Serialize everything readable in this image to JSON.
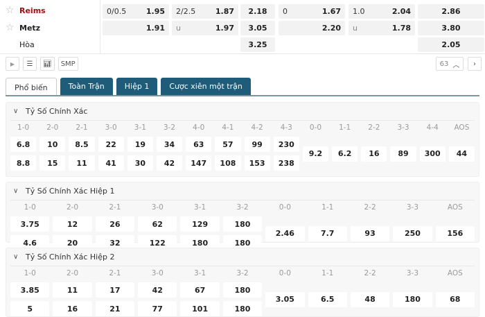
{
  "match": {
    "home": {
      "name": "Reims",
      "color": "#a01010",
      "odds": [
        {
          "l": "0/0.5",
          "v": "1.95"
        },
        {
          "l": "2/2.5",
          "v": "1.87"
        },
        {
          "l": "",
          "v": "2.18"
        },
        {
          "l": "0",
          "v": "1.67"
        },
        {
          "l": "1.0",
          "v": "2.04"
        },
        {
          "l": "",
          "v": "2.86"
        }
      ]
    },
    "away": {
      "name": "Metz",
      "odds": [
        {
          "l": "",
          "v": "1.91"
        },
        {
          "l": "u",
          "v": "1.97"
        },
        {
          "l": "",
          "v": "3.05"
        },
        {
          "l": "",
          "v": "2.20"
        },
        {
          "l": "u",
          "v": "1.78"
        },
        {
          "l": "",
          "v": "3.80"
        }
      ]
    },
    "draw": {
      "name": "Hòa",
      "odds": [
        {
          "l": "",
          "v": "3.25"
        },
        {
          "l": "",
          "v": "2.05"
        }
      ]
    }
  },
  "toolbar": {
    "smp": "SMP",
    "count": "63"
  },
  "tabs": [
    "Phổ biến",
    "Toàn Trận",
    "Hiệp 1",
    "Cược xiên một trận"
  ],
  "sections": [
    {
      "title": "Tỷ Số Chính Xác",
      "home_labels": [
        "1-0",
        "2-0",
        "2-1",
        "3-0",
        "3-1",
        "3-2",
        "4-0",
        "4-1",
        "4-2",
        "4-3"
      ],
      "home": [
        "6.8",
        "10",
        "8.5",
        "22",
        "19",
        "34",
        "63",
        "57",
        "99",
        "230"
      ],
      "away": [
        "8.8",
        "15",
        "11",
        "41",
        "30",
        "42",
        "147",
        "108",
        "153",
        "238"
      ],
      "draw_labels": [
        "0-0",
        "1-1",
        "2-2",
        "3-3",
        "4-4",
        "AOS"
      ],
      "draw": [
        "9.2",
        "6.2",
        "16",
        "89",
        "300",
        "44"
      ]
    },
    {
      "title": "Tỷ Số Chính Xác Hiệp 1",
      "home_labels": [
        "1-0",
        "2-0",
        "2-1",
        "3-0",
        "3-1",
        "3-2"
      ],
      "home": [
        "3.75",
        "12",
        "26",
        "62",
        "129",
        "180"
      ],
      "away": [
        "4.6",
        "20",
        "32",
        "122",
        "180",
        "180"
      ],
      "draw_labels": [
        "0-0",
        "1-1",
        "2-2",
        "3-3",
        "AOS"
      ],
      "draw": [
        "2.46",
        "7.7",
        "93",
        "250",
        "156"
      ]
    },
    {
      "title": "Tỷ Số Chính Xác Hiệp 2",
      "home_labels": [
        "1-0",
        "2-0",
        "2-1",
        "3-0",
        "3-1",
        "3-2"
      ],
      "home": [
        "3.85",
        "11",
        "17",
        "42",
        "67",
        "180"
      ],
      "away": [
        "5",
        "16",
        "21",
        "77",
        "101",
        "180"
      ],
      "draw_labels": [
        "0-0",
        "1-1",
        "2-2",
        "3-3",
        "AOS"
      ],
      "draw": [
        "3.05",
        "6.5",
        "48",
        "180",
        "68"
      ]
    }
  ]
}
